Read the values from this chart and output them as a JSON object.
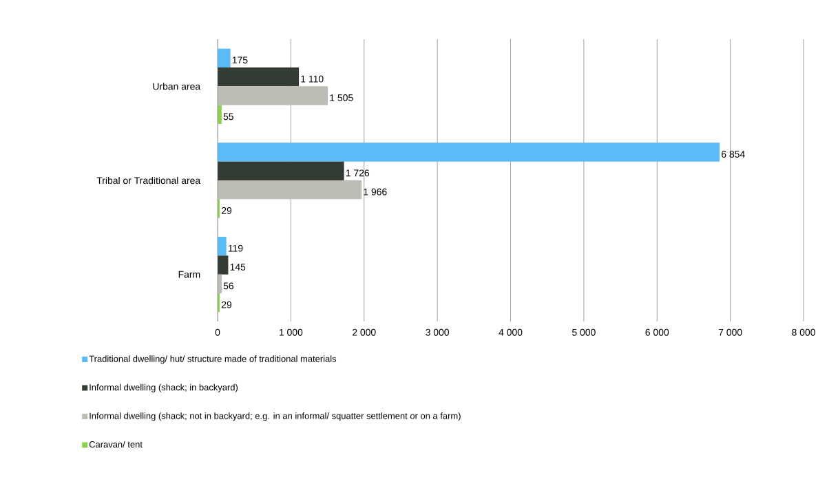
{
  "chart_data": {
    "type": "bar",
    "orientation": "horizontal",
    "categories": [
      "Urban area",
      "Tribal or Traditional area",
      "Farm"
    ],
    "series": [
      {
        "name": "Traditional dwelling/ hut/ structure made of traditional materials",
        "color": "#59bcf8",
        "values": [
          175,
          6854,
          119
        ],
        "value_labels": [
          "175",
          "6 854",
          "119"
        ]
      },
      {
        "name": "Informal dwelling (shack; in backyard)",
        "color": "#323c32",
        "values": [
          1110,
          1726,
          145
        ],
        "value_labels": [
          "1 110",
          "1 726",
          "145"
        ]
      },
      {
        "name": "Informal dwelling (shack; not in backyard; e.g. in an informal/ squatter settlement or on a farm)",
        "color": "#bdbdb5",
        "values": [
          1505,
          1966,
          56
        ],
        "value_labels": [
          "1 505",
          "1 966",
          "56"
        ]
      },
      {
        "name": "Caravan/ tent",
        "color": "#8dd14f",
        "values": [
          55,
          29,
          29
        ],
        "value_labels": [
          "55",
          "29",
          "29"
        ]
      }
    ],
    "xlim": [
      0,
      8000
    ],
    "xticks": [
      0,
      {
        "value": 1000,
        "label": "1 000"
      },
      {
        "value": 2000,
        "label": "2 000"
      },
      {
        "value": 3000,
        "label": "3 000"
      },
      {
        "value": 4000,
        "label": "4 000"
      },
      {
        "value": 5000,
        "label": "5 000"
      },
      {
        "value": 6000,
        "label": "6 000"
      },
      {
        "value": 7000,
        "label": "7 000"
      },
      {
        "value": 8000,
        "label": "8 000"
      }
    ],
    "grid": "x",
    "legend": "bottom"
  }
}
